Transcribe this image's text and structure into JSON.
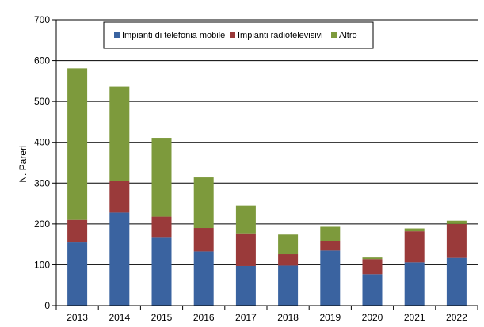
{
  "chart_data": {
    "type": "bar",
    "stacked": true,
    "title": "",
    "xlabel": "",
    "ylabel": "N. Pareri",
    "ylim": [
      0,
      700
    ],
    "yticks": [
      0,
      100,
      200,
      300,
      400,
      500,
      600,
      700
    ],
    "grid": true,
    "legend_position": "top",
    "categories": [
      "2013",
      "2014",
      "2015",
      "2016",
      "2017",
      "2018",
      "2019",
      "2020",
      "2021",
      "2022"
    ],
    "series": [
      {
        "name": "Impianti di telefonia mobile",
        "color": "#3a63a0",
        "values": [
          155,
          228,
          168,
          133,
          97,
          98,
          135,
          77,
          106,
          117
        ]
      },
      {
        "name": "Impianti radiotelevisivi",
        "color": "#9a3a3a",
        "values": [
          55,
          77,
          50,
          57,
          80,
          28,
          23,
          37,
          76,
          83
        ]
      },
      {
        "name": "Altro",
        "color": "#7d9a3c",
        "values": [
          371,
          231,
          193,
          124,
          68,
          48,
          35,
          4,
          7,
          8
        ]
      }
    ]
  }
}
